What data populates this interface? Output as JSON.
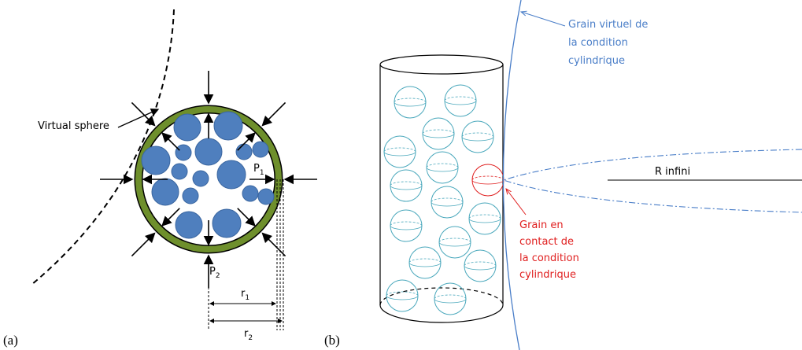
{
  "panel_a": {
    "label": "(a)",
    "sphere_label": "Virtual sphere",
    "p1": {
      "base": "P",
      "sub": "1"
    },
    "p2": {
      "base": "P",
      "sub": "2"
    },
    "r1": {
      "base": "r",
      "sub": "1"
    },
    "r2": {
      "base": "r",
      "sub": "2"
    }
  },
  "panel_b": {
    "label": "(b)",
    "virtual_grain": [
      "Grain virtuel de",
      "la condition",
      "cylindrique"
    ],
    "contact_grain": [
      "Grain en",
      "contact de",
      "la condition",
      "cylindrique"
    ],
    "radius_label": "R infini"
  }
}
